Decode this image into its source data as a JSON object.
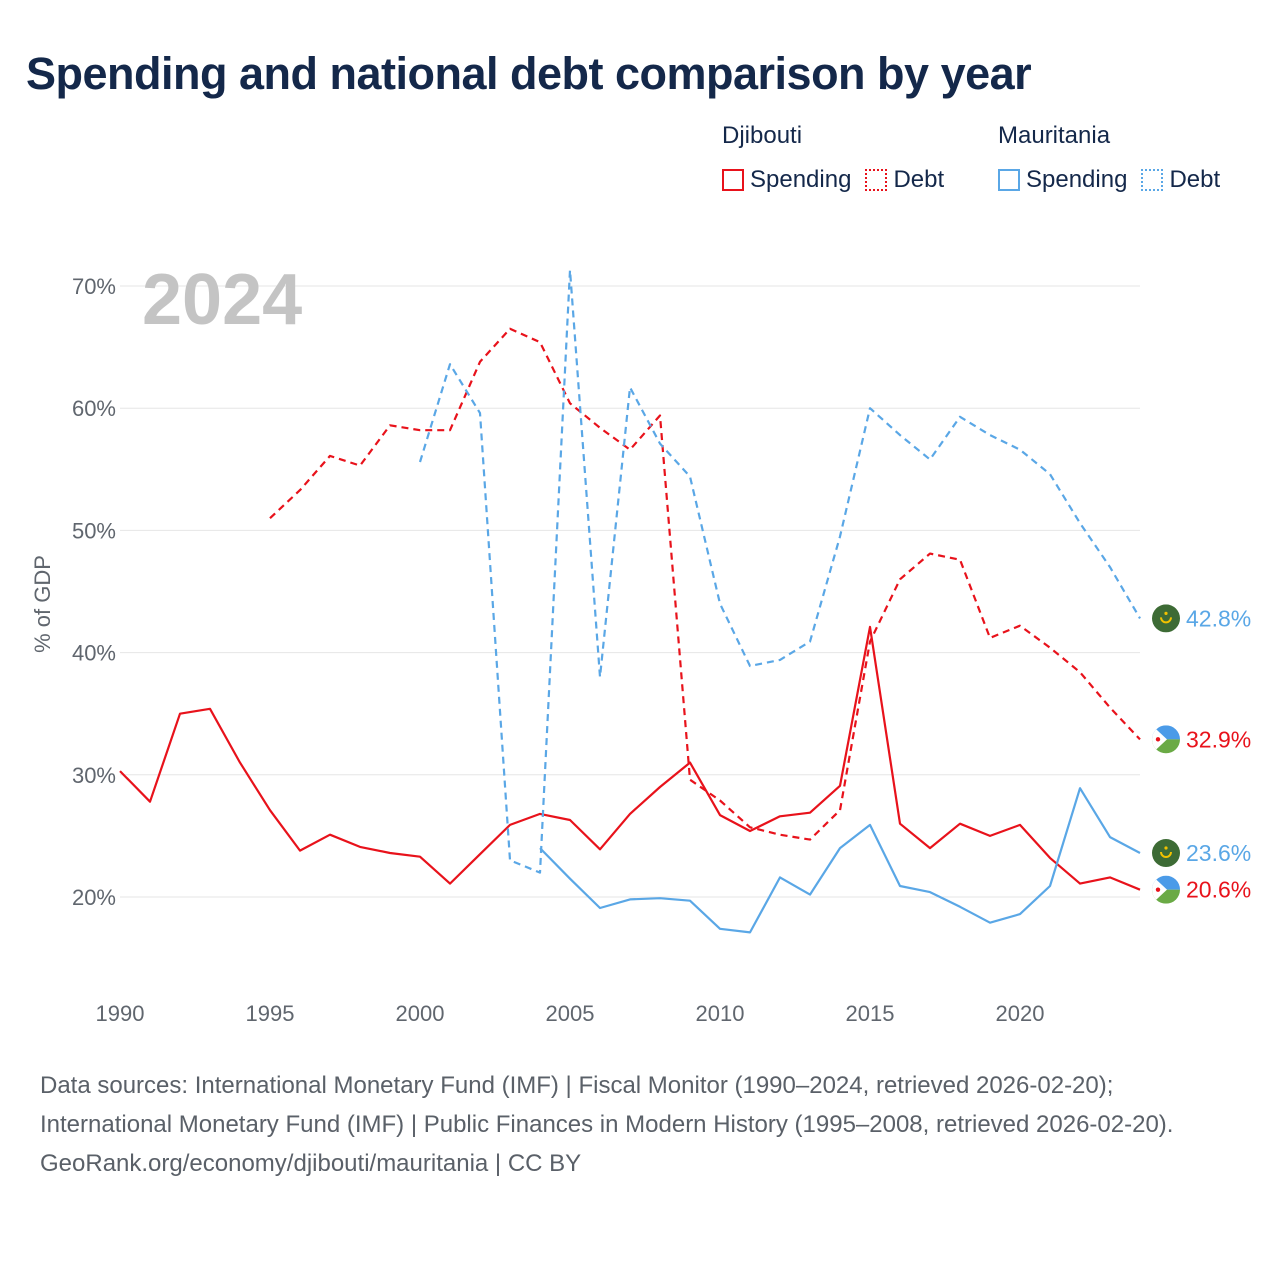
{
  "title": "Spending and national debt comparison by year",
  "legend": {
    "groups": [
      {
        "country": "Djibouti",
        "color": "#e8121b",
        "items": [
          "Spending",
          "Debt"
        ]
      },
      {
        "country": "Mauritania",
        "color": "#5aa7e6",
        "items": [
          "Spending",
          "Debt"
        ]
      }
    ]
  },
  "chart_data": {
    "type": "line",
    "title": "Spending and national debt comparison by year",
    "xlabel": "",
    "ylabel": "% of GDP",
    "xlim": [
      1990,
      2024
    ],
    "ylim": [
      13,
      73
    ],
    "y_ticks": [
      20,
      30,
      40,
      50,
      60,
      70
    ],
    "y_tick_labels": [
      "20%",
      "30%",
      "40%",
      "50%",
      "60%",
      "70%"
    ],
    "x_ticks": [
      1990,
      1995,
      2000,
      2005,
      2010,
      2015,
      2020
    ],
    "x_tick_labels": [
      "1990",
      "1995",
      "2000",
      "2005",
      "2010",
      "2015",
      "2020"
    ],
    "grid": true,
    "year_watermark": "2024",
    "series": [
      {
        "name": "Djibouti Spending",
        "country": "Djibouti",
        "metric": "Spending",
        "color": "#e8121b",
        "dash": "solid",
        "end_label": "20.6%",
        "flag": "djibouti",
        "x": [
          1990,
          1991,
          1992,
          1993,
          1994,
          1995,
          1996,
          1997,
          1998,
          1999,
          2000,
          2001,
          2002,
          2003,
          2004,
          2005,
          2006,
          2007,
          2008,
          2009,
          2010,
          2011,
          2012,
          2013,
          2014,
          2015,
          2016,
          2017,
          2018,
          2019,
          2020,
          2021,
          2022,
          2023,
          2024
        ],
        "values": [
          30.3,
          27.8,
          35.0,
          35.4,
          31.0,
          27.1,
          23.8,
          25.1,
          24.1,
          23.6,
          23.3,
          21.1,
          23.5,
          25.9,
          26.8,
          26.3,
          23.9,
          26.8,
          29.0,
          31.0,
          26.7,
          25.4,
          26.6,
          26.9,
          29.1,
          42.1,
          26.0,
          24.0,
          26.0,
          25.0,
          25.9,
          23.2,
          21.1,
          21.6,
          20.6
        ]
      },
      {
        "name": "Djibouti Debt",
        "country": "Djibouti",
        "metric": "Debt",
        "color": "#e8121b",
        "dash": "dashed",
        "end_label": "32.9%",
        "flag": "djibouti",
        "x": [
          1995,
          1996,
          1997,
          1998,
          1999,
          2000,
          2001,
          2002,
          2003,
          2004,
          2005,
          2006,
          2007,
          2008,
          2009,
          2010,
          2011,
          2012,
          2013,
          2014,
          2015,
          2016,
          2017,
          2018,
          2019,
          2020,
          2021,
          2022,
          2023,
          2024
        ],
        "values": [
          51.0,
          53.3,
          56.1,
          55.3,
          58.6,
          58.2,
          58.2,
          63.8,
          66.5,
          65.4,
          60.4,
          58.4,
          56.6,
          59.4,
          29.6,
          27.9,
          25.7,
          25.1,
          24.7,
          27.1,
          40.9,
          46.0,
          48.1,
          47.6,
          41.2,
          42.2,
          40.4,
          38.4,
          35.5,
          32.9
        ]
      },
      {
        "name": "Mauritania Spending",
        "country": "Mauritania",
        "metric": "Spending",
        "color": "#5aa7e6",
        "dash": "solid",
        "end_label": "23.6%",
        "flag": "mauritania",
        "x": [
          2004,
          2005,
          2006,
          2007,
          2008,
          2009,
          2010,
          2011,
          2012,
          2013,
          2014,
          2015,
          2016,
          2017,
          2018,
          2019,
          2020,
          2021,
          2022,
          2023,
          2024
        ],
        "values": [
          24.0,
          21.5,
          19.1,
          19.8,
          19.9,
          19.7,
          17.4,
          17.1,
          21.6,
          20.2,
          24.0,
          25.9,
          20.9,
          20.4,
          19.2,
          17.9,
          18.6,
          20.9,
          28.9,
          24.9,
          23.6
        ]
      },
      {
        "name": "Mauritania Debt",
        "country": "Mauritania",
        "metric": "Debt",
        "color": "#5aa7e6",
        "dash": "dashed",
        "end_label": "42.8%",
        "flag": "mauritania",
        "x": [
          2000,
          2001,
          2002,
          2003,
          2004,
          2005,
          2006,
          2007,
          2008,
          2009,
          2010,
          2011,
          2012,
          2013,
          2014,
          2015,
          2016,
          2017,
          2018,
          2019,
          2020,
          2021,
          2022,
          2023,
          2024
        ],
        "values": [
          55.6,
          63.6,
          59.6,
          23.0,
          22.0,
          71.3,
          38.0,
          61.7,
          57.1,
          54.4,
          44.0,
          38.9,
          39.4,
          40.9,
          49.5,
          60.0,
          57.8,
          55.8,
          59.3,
          57.8,
          56.6,
          54.6,
          50.6,
          47.0,
          42.8
        ]
      }
    ]
  },
  "footer": {
    "sources": "Data sources: International Monetary Fund (IMF) | Fiscal Monitor (1990–2024, retrieved 2026-02-20); International Monetary Fund (IMF) | Public Finances in Modern History (1995–2008, retrieved 2026-02-20).",
    "credit": "GeoRank.org/economy/djibouti/mauritania | CC BY"
  }
}
